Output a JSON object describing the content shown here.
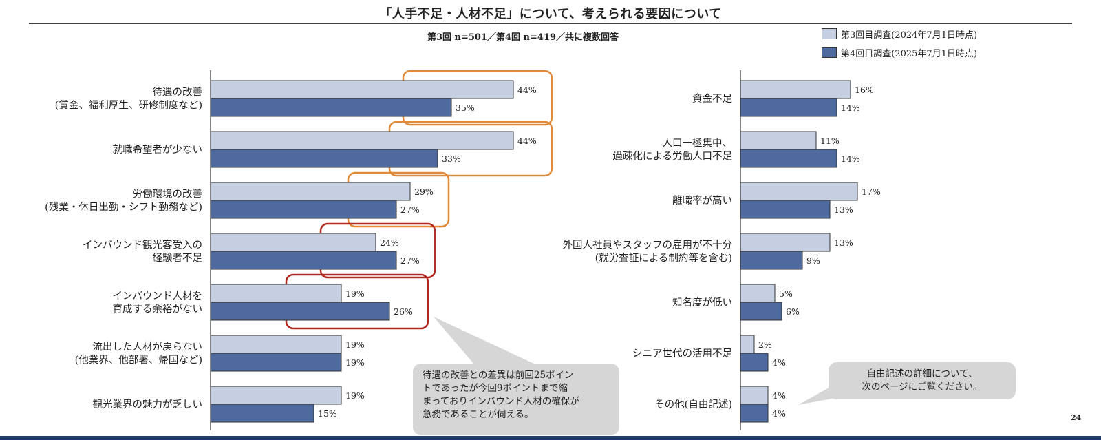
{
  "page": {
    "title": "「人手不足・人材不足」について、考えられる要因について",
    "subtitle": "第3回 n=501／第4回 n=419／共に複数回答",
    "page_number": "24"
  },
  "colors": {
    "series_3": "#c6cfe2",
    "series_4": "#4f6a9e",
    "highlight_orange": "#e08a3a",
    "highlight_red": "#b02a22",
    "callout_bg": "#d6d6d6"
  },
  "legend": [
    {
      "label": "第3回目調査(2024年7月1日時点)"
    },
    {
      "label": "第4回目調査(2025年7月1日時点)"
    }
  ],
  "callouts": {
    "left": [
      "待遇の改善との差異は前回25ポイン",
      "トであったが今回9ポイントまで縮",
      "まっておりインバウンド人材の確保が",
      "急務であることが伺える。"
    ],
    "right": [
      "自由記述の詳細について、",
      "次のページにご覧ください。"
    ]
  },
  "chart_data": [
    {
      "type": "bar",
      "orientation": "horizontal",
      "title": "",
      "categories": [
        [
          "待遇の改善",
          "(賃金、福利厚生、研修制度など)"
        ],
        [
          "就職希望者が少ない"
        ],
        [
          "労働環境の改善",
          "(残業・休日出勤・シフト勤務など)"
        ],
        [
          "インバウンド観光客受入の",
          "経験者不足"
        ],
        [
          "インバウンド人材を",
          "育成する余裕がない"
        ],
        [
          "流出した人材が戻らない",
          "(他業界、他部署、帰国など)"
        ],
        [
          "観光業界の魅力が乏しい"
        ]
      ],
      "series": [
        {
          "name": "第3回目調査(2024年7月1日時点)",
          "values": [
            44,
            44,
            29,
            24,
            19,
            19,
            19
          ],
          "labels": [
            "44%",
            "44%",
            "29%",
            "24%",
            "19%",
            "19%",
            "19%"
          ]
        },
        {
          "name": "第4回目調査(2025年7月1日時点)",
          "values": [
            35,
            33,
            27,
            27,
            26,
            19,
            15
          ],
          "labels": [
            "35%",
            "33%",
            "27%",
            "27%",
            "26%",
            "19%",
            "15%"
          ]
        }
      ],
      "highlights": [
        {
          "category_index": 0,
          "color": "orange"
        },
        {
          "category_index": 1,
          "color": "orange"
        },
        {
          "category_index": 2,
          "color": "orange"
        },
        {
          "category_index": 3,
          "color": "red"
        },
        {
          "category_index": 4,
          "color": "red"
        }
      ],
      "xlim": [
        0,
        50
      ]
    },
    {
      "type": "bar",
      "orientation": "horizontal",
      "title": "",
      "categories": [
        [
          "資金不足"
        ],
        [
          "人口一極集中、",
          "過疎化による労働人口不足"
        ],
        [
          "離職率が高い"
        ],
        [
          "外国人社員やスタッフの雇用が不十分",
          "(就労査証による制約等を含む)"
        ],
        [
          "知名度が低い"
        ],
        [
          "シニア世代の活用不足"
        ],
        [
          "その他(自由記述)"
        ]
      ],
      "series": [
        {
          "name": "第3回目調査(2024年7月1日時点)",
          "values": [
            16,
            11,
            17,
            13,
            5,
            2,
            4
          ],
          "labels": [
            "16%",
            "11%",
            "17%",
            "13%",
            "5%",
            "2%",
            "4%"
          ]
        },
        {
          "name": "第4回目調査(2025年7月1日時点)",
          "values": [
            14,
            14,
            13,
            9,
            6,
            4,
            4
          ],
          "labels": [
            "14%",
            "14%",
            "13%",
            "9%",
            "6%",
            "4%",
            "4%"
          ]
        }
      ],
      "highlights": [],
      "xlim": [
        0,
        50
      ]
    }
  ]
}
